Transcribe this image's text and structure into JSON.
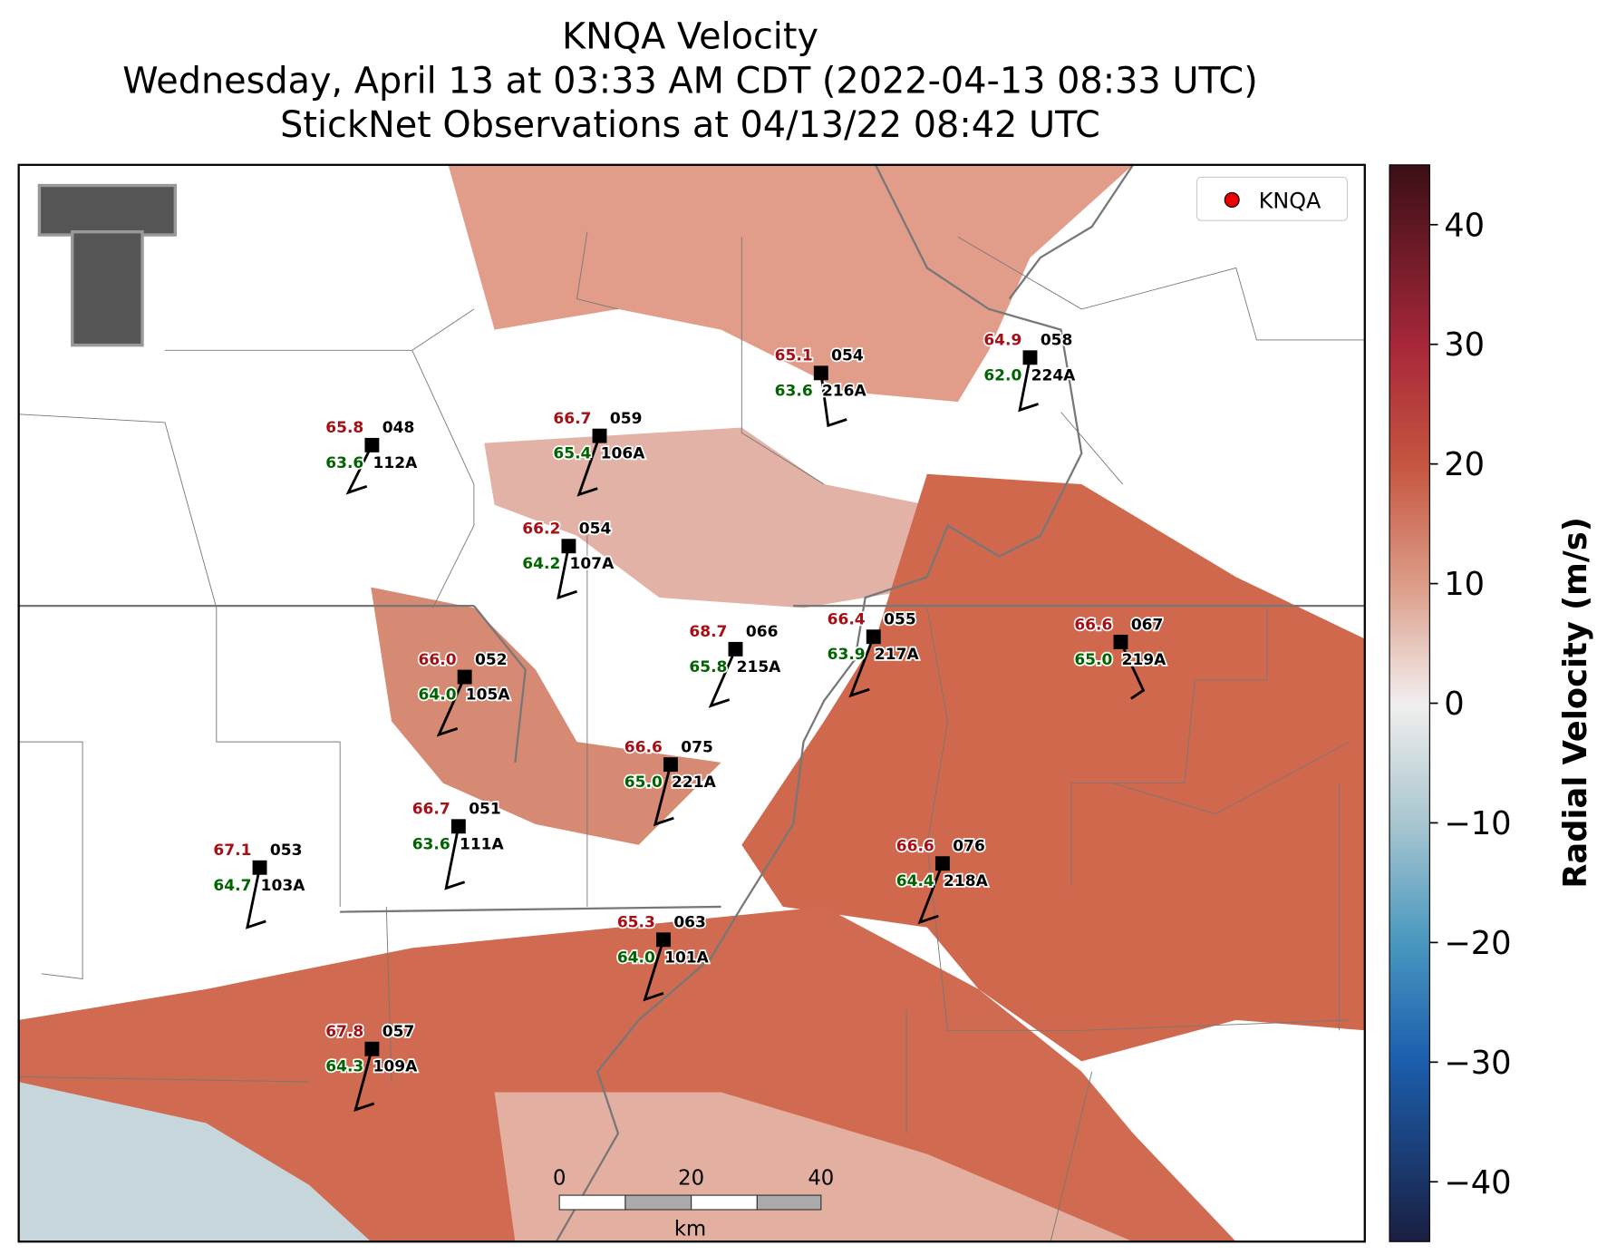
{
  "title": [
    "KNQA Velocity",
    "Wednesday, April 13 at 03:33 AM CDT (2022-04-13 08:33 UTC)",
    "StickNet Observations at 04/13/22 08:42 UTC"
  ],
  "legend": "KNQA",
  "colorbar": {
    "label": "Radial Velocity (m/s)",
    "clim": [
      -45,
      45
    ],
    "ticks": [
      40,
      30,
      20,
      10,
      0,
      {
        "value": -10,
        "label": "−10"
      },
      {
        "value": -20,
        "label": "−20"
      },
      {
        "value": -30,
        "label": "−30"
      },
      {
        "value": -40,
        "label": "−40"
      }
    ]
  },
  "scalebar": {
    "ticks": [
      "0",
      "20",
      "40"
    ],
    "unit": "km"
  },
  "stations": [
    {
      "temp": "65.1",
      "code": "054",
      "dew": "63.6",
      "id": "216A"
    },
    {
      "temp": "64.9",
      "code": "058",
      "dew": "62.0",
      "id": "224A"
    },
    {
      "temp": "65.8",
      "code": "048",
      "dew": "63.6",
      "id": "112A"
    },
    {
      "temp": "66.7",
      "code": "059",
      "dew": "65.4",
      "id": "106A"
    },
    {
      "temp": "66.2",
      "code": "054",
      "dew": "64.2",
      "id": "107A"
    },
    {
      "temp": "68.7",
      "code": "066",
      "dew": "65.8",
      "id": "215A"
    },
    {
      "temp": "66.4",
      "code": "055",
      "dew": "63.9",
      "id": "217A"
    },
    {
      "temp": "66.6",
      "code": "067",
      "dew": "65.0",
      "id": "219A"
    },
    {
      "temp": "66.0",
      "code": "052",
      "dew": "64.0",
      "id": "105A"
    },
    {
      "temp": "66.6",
      "code": "075",
      "dew": "65.0",
      "id": "221A"
    },
    {
      "temp": "66.7",
      "code": "051",
      "dew": "63.6",
      "id": "111A"
    },
    {
      "temp": "67.1",
      "code": "053",
      "dew": "64.7",
      "id": "103A"
    },
    {
      "temp": "66.6",
      "code": "076",
      "dew": "64.4",
      "id": "218A"
    },
    {
      "temp": "65.3",
      "code": "063",
      "dew": "64.0",
      "id": "101A"
    },
    {
      "temp": "67.8",
      "code": "057",
      "dew": "64.3",
      "id": "109A"
    }
  ]
}
